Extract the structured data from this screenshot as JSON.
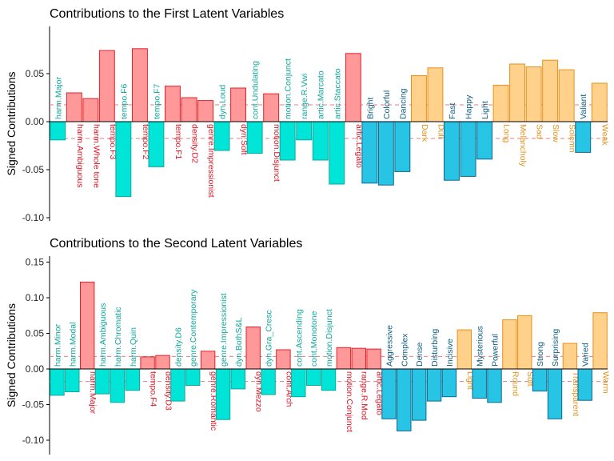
{
  "colors": {
    "red_fill": "#FF9999",
    "red_stroke": "#E8202A",
    "red_text": "#E01020",
    "cyan_fill": "#00E5D8",
    "cyan_stroke": "#10A89C",
    "cyan_text": "#10A89C",
    "blue_fill": "#27C4E6",
    "blue_stroke": "#0E6A8A",
    "blue_text": "#0E5E80",
    "orange_fill": "#FFD18A",
    "orange_stroke": "#E5901A",
    "orange_text": "#E5901A",
    "threshold": "#E08080"
  },
  "chart_data": [
    {
      "type": "bar",
      "title": "Contributions to the First Latent Variables",
      "ylabel": "Signed Contributions",
      "ylim": [
        -0.1,
        0.1
      ],
      "yticks": [
        "-0.10",
        "-0.05",
        "0.00",
        "0.05"
      ],
      "threshold": 0.0175,
      "grid": false,
      "categories": [
        "harm.Major",
        "harm.Ambiguous",
        "harm.Whole tone",
        "tempo.F3",
        "tempo.F6",
        "tempo.F2",
        "tempo.F7",
        "tempo.F1",
        "density.D2",
        "genre.Impressionist",
        "dyn.Loud",
        "dyn.Soft",
        "cont.Undulating",
        "motion.Disjunct",
        "motion.Conjunct",
        "range.R.Vwi",
        "artic.Marcato",
        "artic.Staccato",
        "artic.Legato",
        "Bright",
        "Colorful",
        "Dancing",
        "Dark",
        "Dull",
        "Fast",
        "Happy",
        "Light",
        "Long",
        "Melancholy",
        "Sad",
        "Slow",
        "Solemn",
        "Valiant",
        "Weak"
      ],
      "values": [
        -0.019,
        0.03,
        0.024,
        0.074,
        -0.078,
        0.076,
        -0.047,
        0.037,
        0.025,
        0.022,
        -0.03,
        0.035,
        -0.033,
        0.029,
        -0.04,
        -0.019,
        -0.04,
        -0.065,
        0.071,
        -0.064,
        -0.066,
        -0.052,
        0.048,
        0.056,
        -0.061,
        -0.057,
        -0.039,
        0.038,
        0.06,
        0.057,
        0.064,
        0.054,
        -0.032,
        0.04
      ],
      "groups": [
        "cyan",
        "red",
        "red",
        "red",
        "cyan",
        "red",
        "cyan",
        "red",
        "red",
        "red",
        "cyan",
        "red",
        "cyan",
        "red",
        "cyan",
        "cyan",
        "cyan",
        "cyan",
        "red",
        "blue",
        "blue",
        "blue",
        "orange",
        "orange",
        "blue",
        "blue",
        "blue",
        "orange",
        "orange",
        "orange",
        "orange",
        "orange",
        "blue",
        "orange"
      ]
    },
    {
      "type": "bar",
      "title": "Contributions to the Second Latent Variables",
      "ylabel": "Signed Contributions",
      "ylim": [
        -0.12,
        0.155
      ],
      "yticks": [
        "-0.10",
        "-0.05",
        "0.00",
        "0.05",
        "0.10",
        "0.15"
      ],
      "threshold": 0.0175,
      "grid": false,
      "categories": [
        "harm.Minor",
        "harm.Modal",
        "harm.Major",
        "harm.Ambiguous",
        "harm.Chromatic",
        "harm.Quin",
        "tempo.F4",
        "density.D3",
        "density.D6",
        "genre.Contemporary",
        "genre.Romantic",
        "genre.Impressionist",
        "dyn.BothS&L",
        "dyn.Mezzo",
        "dyn.Gra_Cresc",
        "cont.Arch",
        "cont.Ascending",
        "cont.Monotone",
        "motion.Disjunct",
        "motion.Conjunct",
        "range.R.Mod",
        "artic.Legato",
        "Aggressive",
        "Complex",
        "Dense",
        "Disturbing",
        "Incisive",
        "Light",
        "Mysterious",
        "Powerful",
        "Round",
        "Soft",
        "Strong",
        "Surprising",
        "Transparent",
        "Varied",
        "Warm"
      ],
      "values": [
        -0.037,
        -0.032,
        0.122,
        -0.035,
        -0.047,
        -0.03,
        0.017,
        0.019,
        -0.045,
        -0.023,
        0.025,
        -0.071,
        -0.028,
        0.059,
        -0.036,
        0.027,
        -0.039,
        -0.023,
        -0.03,
        0.03,
        0.029,
        0.028,
        -0.07,
        -0.087,
        -0.072,
        -0.045,
        -0.039,
        0.055,
        -0.041,
        -0.047,
        0.069,
        0.075,
        -0.031,
        -0.07,
        0.036,
        -0.044,
        0.079
      ],
      "groups": [
        "cyan",
        "cyan",
        "red",
        "cyan",
        "cyan",
        "cyan",
        "red",
        "red",
        "cyan",
        "cyan",
        "red",
        "cyan",
        "cyan",
        "red",
        "cyan",
        "red",
        "cyan",
        "cyan",
        "cyan",
        "red",
        "red",
        "red",
        "blue",
        "blue",
        "blue",
        "blue",
        "blue",
        "orange",
        "blue",
        "blue",
        "orange",
        "orange",
        "blue",
        "blue",
        "orange",
        "blue",
        "orange"
      ]
    }
  ]
}
